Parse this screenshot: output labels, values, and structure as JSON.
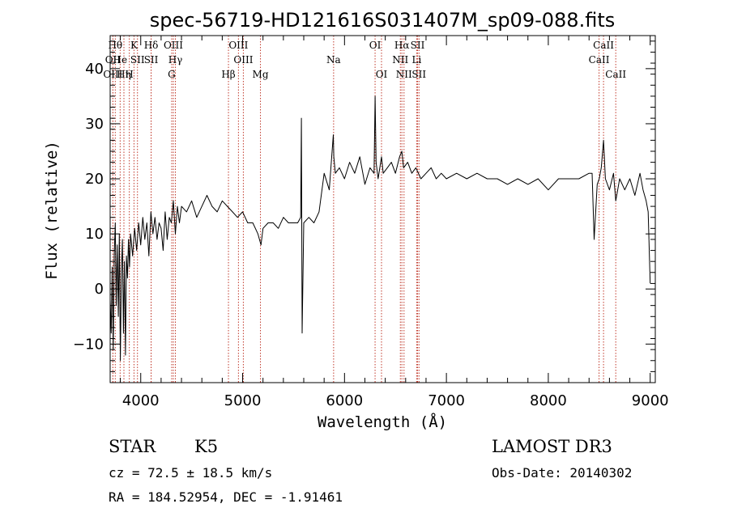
{
  "chart_data": {
    "type": "line",
    "title": "spec-56719-HD121616S031407M_sp09-088.fits",
    "xlabel": "Wavelength (Å)",
    "ylabel": "Flux (relative)",
    "xlim": [
      3700,
      9050
    ],
    "ylim": [
      -17,
      46
    ],
    "xticks": [
      4000,
      5000,
      6000,
      7000,
      8000,
      9000
    ],
    "yticks": [
      -10,
      0,
      10,
      20,
      30,
      40
    ],
    "series": [
      {
        "name": "flux",
        "x": [
          3700,
          3710,
          3720,
          3730,
          3740,
          3750,
          3760,
          3770,
          3780,
          3790,
          3800,
          3810,
          3820,
          3830,
          3840,
          3850,
          3860,
          3870,
          3880,
          3890,
          3900,
          3920,
          3940,
          3960,
          3980,
          4000,
          4020,
          4040,
          4060,
          4080,
          4100,
          4120,
          4140,
          4160,
          4180,
          4200,
          4220,
          4240,
          4260,
          4280,
          4300,
          4320,
          4340,
          4360,
          4380,
          4400,
          4450,
          4500,
          4550,
          4600,
          4650,
          4700,
          4750,
          4800,
          4850,
          4900,
          4950,
          5000,
          5050,
          5100,
          5150,
          5180,
          5200,
          5250,
          5300,
          5350,
          5400,
          5450,
          5500,
          5540,
          5570,
          5577,
          5584,
          5600,
          5650,
          5700,
          5750,
          5800,
          5850,
          5870,
          5890,
          5895,
          5910,
          5950,
          6000,
          6050,
          6100,
          6150,
          6200,
          6250,
          6290,
          6300,
          6310,
          6330,
          6363,
          6380,
          6420,
          6460,
          6500,
          6540,
          6563,
          6580,
          6620,
          6660,
          6700,
          6750,
          6800,
          6850,
          6900,
          6950,
          7000,
          7100,
          7200,
          7300,
          7400,
          7500,
          7600,
          7700,
          7800,
          7900,
          8000,
          8100,
          8200,
          8300,
          8400,
          8430,
          8450,
          8480,
          8500,
          8520,
          8542,
          8560,
          8600,
          8640,
          8662,
          8700,
          8750,
          8800,
          8850,
          8900,
          8930,
          8960,
          8980,
          9000
        ],
        "values": [
          -2,
          -8,
          4,
          -11,
          6,
          12,
          -3,
          8,
          -5,
          10,
          -13,
          3,
          9,
          -8,
          5,
          -12,
          6,
          2,
          9,
          4,
          10,
          6,
          11,
          7,
          12,
          8,
          13,
          9,
          12,
          6,
          14,
          10,
          13,
          9,
          12,
          11,
          7,
          14,
          9,
          13,
          12,
          16,
          10,
          15,
          12,
          15,
          14,
          16,
          13,
          15,
          17,
          15,
          14,
          16,
          15,
          14,
          13,
          14,
          12,
          12,
          10,
          8,
          11,
          12,
          12,
          11,
          13,
          12,
          12,
          12,
          13,
          31,
          -8,
          12,
          13,
          12,
          14,
          21,
          18,
          23,
          28,
          24,
          21,
          22,
          20,
          23,
          21,
          24,
          19,
          22,
          21,
          35,
          23,
          20,
          24,
          21,
          22,
          23,
          21,
          24,
          25,
          22,
          23,
          21,
          22,
          20,
          21,
          22,
          20,
          21,
          20,
          21,
          20,
          21,
          20,
          20,
          19,
          20,
          19,
          20,
          18,
          20,
          20,
          20,
          21,
          21,
          9,
          19,
          20,
          22,
          27,
          20,
          18,
          21,
          16,
          20,
          18,
          20,
          17,
          21,
          18,
          16,
          14,
          1
        ],
        "color": "#000000"
      }
    ],
    "line_markers": [
      {
        "x": 3750,
        "label": "Hθ",
        "row": 0
      },
      {
        "x": 3727,
        "label": "OII",
        "row": 1
      },
      {
        "x": 3727,
        "label": "OIII",
        "row": 2
      },
      {
        "x": 3798,
        "label": "He",
        "row": 1
      },
      {
        "x": 3835,
        "label": "Hη",
        "row": 2
      },
      {
        "x": 3888,
        "label": "H",
        "row": 2
      },
      {
        "x": 3934,
        "label": "K",
        "row": 0
      },
      {
        "x": 3968,
        "label": "SII",
        "row": 1
      },
      {
        "x": 4102,
        "label": "Hδ",
        "row": 0
      },
      {
        "x": 4102,
        "label": "SII",
        "row": 1
      },
      {
        "x": 4320,
        "label": "OIII",
        "row": 0
      },
      {
        "x": 4340,
        "label": "Hγ",
        "row": 1
      },
      {
        "x": 4304,
        "label": "G",
        "row": 2
      },
      {
        "x": 4861,
        "label": "Hβ",
        "row": 2
      },
      {
        "x": 4959,
        "label": "OIII",
        "row": 0
      },
      {
        "x": 5007,
        "label": "OIII",
        "row": 1
      },
      {
        "x": 5175,
        "label": "Mg",
        "row": 2
      },
      {
        "x": 5893,
        "label": "Na",
        "row": 1
      },
      {
        "x": 6300,
        "label": "OI",
        "row": 0
      },
      {
        "x": 6363,
        "label": "OI",
        "row": 2
      },
      {
        "x": 6563,
        "label": "Hα",
        "row": 0
      },
      {
        "x": 6548,
        "label": "NII",
        "row": 1
      },
      {
        "x": 6584,
        "label": "NII",
        "row": 2
      },
      {
        "x": 6717,
        "label": "SII",
        "row": 0
      },
      {
        "x": 6708,
        "label": "Li",
        "row": 1
      },
      {
        "x": 6731,
        "label": "SII",
        "row": 2
      },
      {
        "x": 8498,
        "label": "CaII",
        "row": 1
      },
      {
        "x": 8542,
        "label": "CaII",
        "row": 0
      },
      {
        "x": 8662,
        "label": "CaII",
        "row": 2
      }
    ]
  },
  "info": {
    "object_class": "STAR",
    "subclass": "K5",
    "survey": "LAMOST DR3",
    "redshift": "cz = 72.5 ± 18.5 km/s",
    "obs_date": "Obs-Date: 20140302",
    "coords": "RA = 184.52954, DEC =  -1.91461"
  }
}
